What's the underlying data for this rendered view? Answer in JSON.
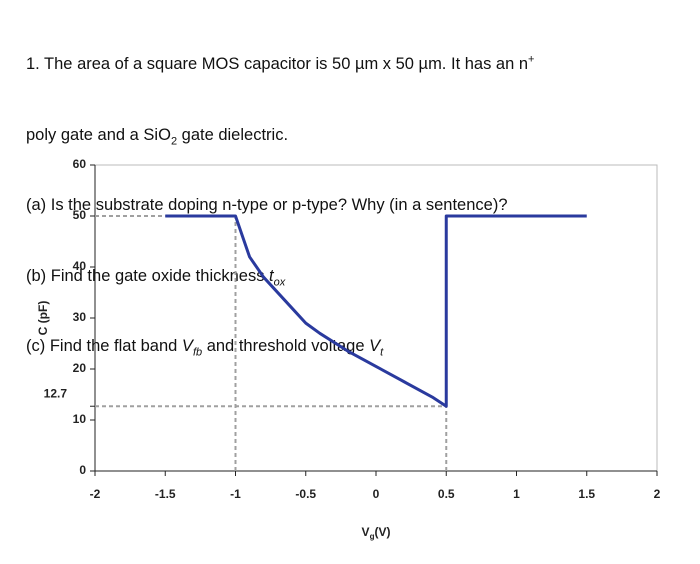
{
  "question": {
    "lines": [
      [
        "1. The area of a square MOS capacitor is 50 µm x 50 µm. It has an n",
        "+"
      ],
      [
        "poly gate and a SiO",
        "2",
        " gate dielectric."
      ],
      [
        "(a) Is the substrate doping n-type or p-type? Why (in a sentence)?"
      ],
      [
        "(b) Find the gate oxide thickness ",
        "t",
        "ox"
      ],
      [
        "(c) Find the flat band ",
        "V",
        "fb",
        " and threshold voltage ",
        "V",
        "t"
      ]
    ]
  },
  "chart_data": {
    "type": "line",
    "x_label": [
      "V",
      "g",
      "(V)"
    ],
    "y_label": "C (pF)",
    "x": [
      -1.5,
      -1,
      -0.9,
      -0.8,
      -0.6,
      -0.5,
      -0.4,
      -0.2,
      0,
      0.2,
      0.4,
      0.5,
      0.5,
      1.5
    ],
    "series": [
      {
        "color": "#2a3a9e",
        "values": [
          50,
          50,
          42,
          38,
          32,
          29,
          27,
          23.5,
          20.5,
          17.5,
          14.5,
          12.7,
          50,
          50
        ]
      }
    ],
    "xlim": [
      -2,
      2
    ],
    "ylim": [
      0,
      60
    ],
    "xticks": [
      -2,
      -1.5,
      -1,
      -0.5,
      0,
      0.5,
      1,
      1.5,
      2
    ],
    "yticks": [
      0,
      10,
      12.7,
      20,
      30,
      40,
      50,
      60
    ],
    "reference_lines": {
      "y": [
        50,
        12.7
      ],
      "x": [
        -1,
        0.5
      ],
      "color": "#a0a0a0"
    }
  }
}
